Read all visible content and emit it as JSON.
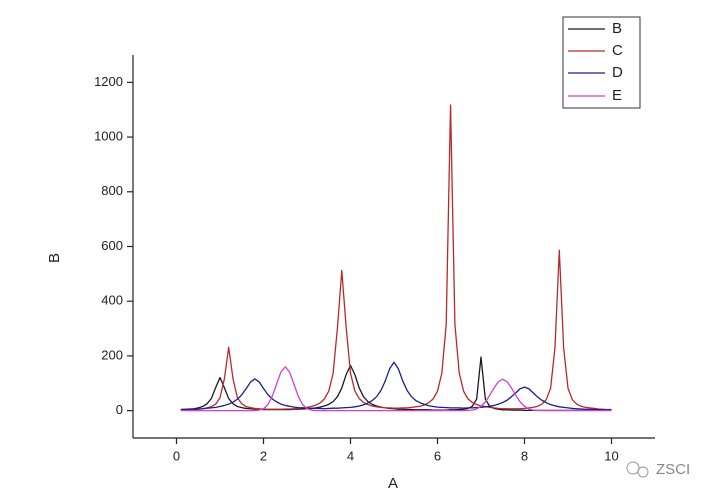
{
  "chart_data": {
    "type": "line",
    "xlabel": "A",
    "ylabel": "B",
    "annotations": [
      "ZSCI"
    ],
    "xlim": [
      -1,
      11
    ],
    "xticks": [
      0,
      2,
      4,
      6,
      8,
      10
    ],
    "ylim": [
      -100,
      1300
    ],
    "yticks": [
      0,
      200,
      400,
      600,
      800,
      1000,
      1200
    ],
    "legend": "upper right",
    "x": [
      0.1,
      0.2,
      0.3,
      0.4,
      0.5,
      0.6,
      0.7,
      0.8,
      0.9,
      1.0,
      1.1,
      1.2,
      1.3,
      1.4,
      1.5,
      1.6,
      1.7,
      1.8,
      1.9,
      2.0,
      2.1,
      2.2,
      2.3,
      2.4,
      2.5,
      2.6,
      2.7,
      2.8,
      2.9,
      3.0,
      3.1,
      3.2,
      3.3,
      3.4,
      3.5,
      3.6,
      3.7,
      3.8,
      3.9,
      4.0,
      4.1,
      4.2,
      4.3,
      4.4,
      4.5,
      4.6,
      4.7,
      4.8,
      4.9,
      5.0,
      5.1,
      5.2,
      5.3,
      5.4,
      5.5,
      5.6,
      5.7,
      5.8,
      5.9,
      6.0,
      6.1,
      6.2,
      6.3,
      6.4,
      6.5,
      6.6,
      6.7,
      6.8,
      6.9,
      7.0,
      7.1,
      7.2,
      7.3,
      7.4,
      7.5,
      7.6,
      7.7,
      7.8,
      7.9,
      8.0,
      8.1,
      8.2,
      8.3,
      8.4,
      8.5,
      8.6,
      8.7,
      8.8,
      8.9,
      9.0,
      9.1,
      9.2,
      9.3,
      9.4,
      9.5,
      9.6,
      9.7,
      9.8,
      9.9,
      10.0
    ],
    "series": [
      {
        "name": "B",
        "color": "#1a1a1a",
        "values": [
          4,
          5,
          6,
          7,
          10,
          15,
          25,
          44,
          84,
          121,
          84,
          44,
          25,
          15,
          11,
          8,
          7,
          5,
          5,
          4,
          4,
          4,
          4,
          4,
          4,
          4,
          5,
          5,
          6,
          7,
          8,
          10,
          13,
          17,
          23,
          33,
          51,
          83,
          132,
          165,
          132,
          83,
          51,
          33,
          23,
          17,
          13,
          10,
          8,
          7,
          5,
          5,
          4,
          4,
          3,
          3,
          3,
          3,
          2,
          2,
          2,
          2,
          3,
          3,
          4,
          5,
          8,
          16,
          42,
          196,
          42,
          16,
          8,
          5,
          3,
          3,
          2,
          2,
          2,
          1,
          1,
          1,
          1,
          1,
          1,
          1,
          1,
          1,
          1,
          1,
          1,
          1,
          1,
          1,
          1,
          1,
          1,
          1,
          1,
          1
        ]
      },
      {
        "name": "C",
        "color": "#b8292b",
        "values": [
          3,
          3,
          3,
          4,
          5,
          7,
          10,
          14,
          24,
          47,
          116,
          231,
          116,
          47,
          25,
          15,
          11,
          8,
          7,
          6,
          5,
          5,
          5,
          5,
          6,
          6,
          7,
          8,
          10,
          12,
          15,
          20,
          28,
          43,
          71,
          136,
          303,
          512,
          305,
          137,
          72,
          44,
          30,
          22,
          17,
          14,
          12,
          10,
          10,
          9,
          9,
          10,
          10,
          12,
          14,
          16,
          21,
          29,
          43,
          71,
          137,
          315,
          1117,
          316,
          137,
          71,
          43,
          30,
          22,
          17,
          15,
          12,
          10,
          8,
          7,
          7,
          7,
          7,
          7,
          8,
          10,
          12,
          16,
          24,
          40,
          82,
          229,
          586,
          229,
          82,
          40,
          24,
          16,
          12,
          10,
          8,
          6,
          5,
          4,
          4
        ]
      },
      {
        "name": "D",
        "color": "#1c1c8a",
        "values": [
          4,
          4,
          5,
          6,
          6,
          7,
          9,
          10,
          12,
          15,
          19,
          24,
          31,
          42,
          58,
          80,
          104,
          116,
          105,
          81,
          59,
          43,
          32,
          24,
          19,
          16,
          13,
          11,
          10,
          9,
          8,
          8,
          8,
          7,
          8,
          9,
          9,
          10,
          11,
          12,
          14,
          17,
          21,
          28,
          37,
          51,
          74,
          109,
          153,
          177,
          153,
          109,
          74,
          51,
          37,
          29,
          23,
          18,
          15,
          13,
          12,
          11,
          10,
          10,
          10,
          9,
          10,
          10,
          11,
          12,
          14,
          16,
          19,
          24,
          30,
          38,
          51,
          65,
          80,
          86,
          80,
          65,
          50,
          38,
          29,
          22,
          18,
          14,
          12,
          10,
          8,
          7,
          6,
          5,
          5,
          4,
          4,
          3,
          3,
          3
        ]
      },
      {
        "name": "E",
        "color": "#d23fd2",
        "values": [
          0,
          0,
          0,
          0,
          0,
          0,
          0,
          0,
          0,
          0,
          0,
          0,
          0,
          0,
          0,
          0,
          0,
          0,
          2,
          7,
          22,
          52,
          97,
          141,
          160,
          141,
          97,
          52,
          22,
          7,
          2,
          0,
          0,
          0,
          0,
          0,
          0,
          0,
          0,
          0,
          0,
          0,
          0,
          0,
          0,
          0,
          0,
          0,
          0,
          0,
          0,
          0,
          0,
          0,
          0,
          0,
          0,
          0,
          0,
          0,
          0,
          0,
          0,
          0,
          0,
          0,
          1,
          2,
          6,
          16,
          32,
          56,
          83,
          106,
          115,
          106,
          83,
          56,
          32,
          16,
          6,
          2,
          1,
          0,
          0,
          0,
          0,
          0,
          0,
          0,
          0,
          0,
          0,
          0,
          0,
          0,
          0,
          0,
          0,
          0
        ]
      }
    ]
  }
}
